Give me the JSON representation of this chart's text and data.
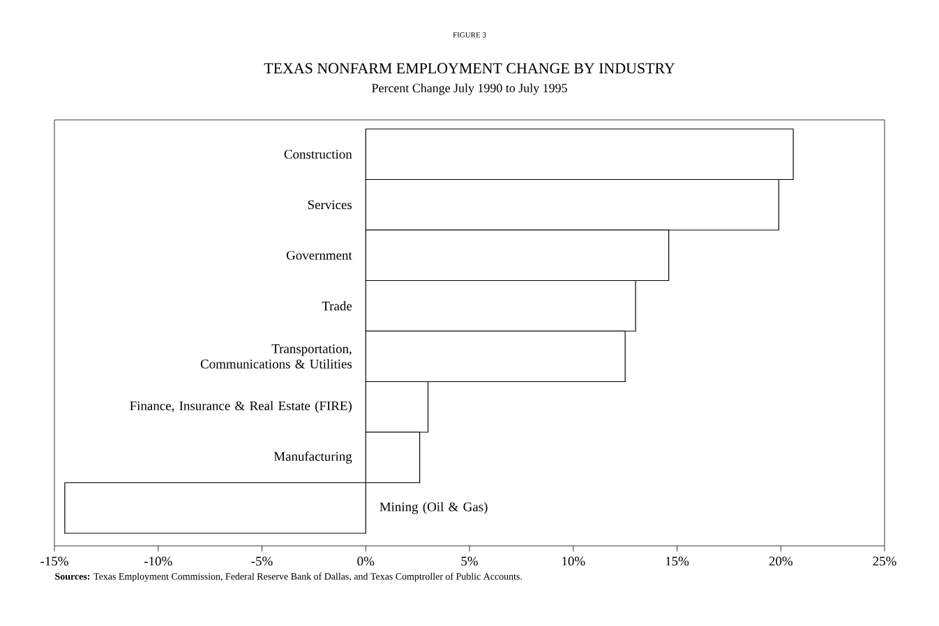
{
  "chart_data": {
    "type": "bar",
    "orientation": "horizontal",
    "title": "TEXAS NONFARM EMPLOYMENT CHANGE BY INDUSTRY",
    "subtitle": "Percent Change July 1990 to July 1995",
    "annotations": [
      "FIGURE 3",
      "**Sources:** Texas Employment Commission, Federal Reserve Bank of Dallas, and Texas Comptroller of Public Accounts."
    ],
    "categories": [
      "Construction",
      "Services",
      "Government",
      "Trade",
      "Transportation, Communications & Utilities",
      "Finance, Insurance & Real Estate (FIRE)",
      "Manufacturing",
      "Mining (Oil & Gas)"
    ],
    "values": [
      20.6,
      19.9,
      14.6,
      13.0,
      12.5,
      3.0,
      2.6,
      -14.5
    ],
    "color": "#ffffff",
    "xlim": [
      -15,
      25
    ],
    "xticks": [
      {
        "value": -15,
        "label": "-15%"
      },
      {
        "value": -10,
        "label": "-10%"
      },
      {
        "value": -5,
        "label": "-5%"
      },
      {
        "value": 0,
        "label": "0%"
      },
      {
        "value": 5,
        "label": "5%"
      },
      {
        "value": 10,
        "label": "10%"
      },
      {
        "value": 15,
        "label": "15%"
      },
      {
        "value": 20,
        "label": "20%"
      },
      {
        "value": 25,
        "label": "25%"
      }
    ],
    "grid": false
  }
}
